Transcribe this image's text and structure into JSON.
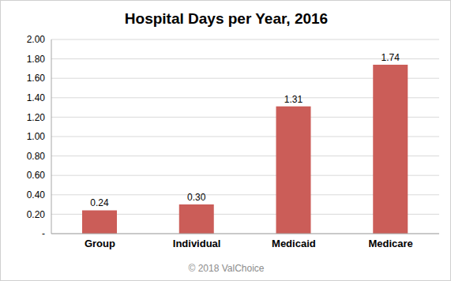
{
  "chart_data": {
    "type": "bar",
    "title": "Hospital Days per Year, 2016",
    "categories": [
      "Group",
      "Individual",
      "Medicaid",
      "Medicare"
    ],
    "values": [
      0.24,
      0.3,
      1.31,
      1.74
    ],
    "value_labels": [
      "0.24",
      "0.30",
      "1.31",
      "1.74"
    ],
    "data_labels": true,
    "color": "#cb5d58",
    "ylim": [
      0,
      2
    ],
    "yticks": [
      {
        "value": 0,
        "label": "-"
      },
      {
        "value": 0.2,
        "label": "0.20"
      },
      {
        "value": 0.4,
        "label": "0.40"
      },
      {
        "value": 0.6,
        "label": "0.60"
      },
      {
        "value": 0.8,
        "label": "0.80"
      },
      {
        "value": 1,
        "label": "1.00"
      },
      {
        "value": 1.2,
        "label": "1.20"
      },
      {
        "value": 1.4,
        "label": "1.40"
      },
      {
        "value": 1.6,
        "label": "1.60"
      },
      {
        "value": 1.8,
        "label": "1.80"
      },
      {
        "value": 2,
        "label": "2.00"
      }
    ],
    "grid": true,
    "annotations": [
      "© 2018 ValChoice"
    ]
  }
}
